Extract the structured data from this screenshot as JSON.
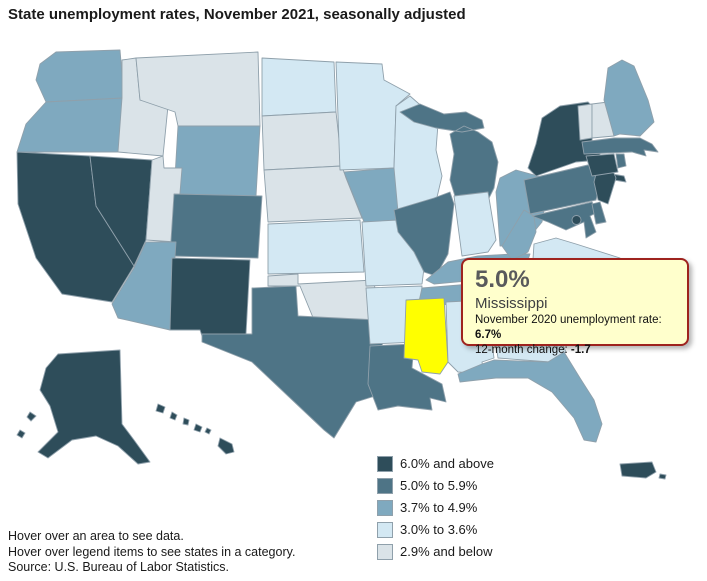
{
  "title": "State unemployment rates, November 2021, seasonally adjusted",
  "tooltip": {
    "rate": "5.0%",
    "state": "Mississippi",
    "prev_label": "November 2020 unemployment rate: ",
    "prev_value": "6.7%",
    "change_label": "12-month change: ",
    "change_value": "-1.7",
    "bg_color": "#FFFFCC",
    "border_color": "#9E231E"
  },
  "legend": {
    "items": [
      {
        "label": "6.0% and above",
        "color": "#2E4D5A"
      },
      {
        "label": "5.0% to 5.9%",
        "color": "#4E7486"
      },
      {
        "label": "3.7% to 4.9%",
        "color": "#7FA9BF"
      },
      {
        "label": "3.0% to 3.6%",
        "color": "#D3E8F3"
      },
      {
        "label": "2.9% and below",
        "color": "#DAE3E8"
      }
    ]
  },
  "map": {
    "border_color": "#8FA0AB",
    "highlighted_state": "MS",
    "highlight_color": "#FFFF00",
    "states": [
      {
        "id": "WA",
        "name": "Washington",
        "cat": 2
      },
      {
        "id": "OR",
        "name": "Oregon",
        "cat": 2
      },
      {
        "id": "CA",
        "name": "California",
        "cat": 0
      },
      {
        "id": "NV",
        "name": "Nevada",
        "cat": 0
      },
      {
        "id": "ID",
        "name": "Idaho",
        "cat": 4
      },
      {
        "id": "MT",
        "name": "Montana",
        "cat": 4
      },
      {
        "id": "WY",
        "name": "Wyoming",
        "cat": 2
      },
      {
        "id": "UT",
        "name": "Utah",
        "cat": 4
      },
      {
        "id": "CO",
        "name": "Colorado",
        "cat": 1
      },
      {
        "id": "AZ",
        "name": "Arizona",
        "cat": 2
      },
      {
        "id": "NM",
        "name": "New Mexico",
        "cat": 0
      },
      {
        "id": "ND",
        "name": "North Dakota",
        "cat": 3
      },
      {
        "id": "SD",
        "name": "South Dakota",
        "cat": 4
      },
      {
        "id": "NE",
        "name": "Nebraska",
        "cat": 4
      },
      {
        "id": "KS",
        "name": "Kansas",
        "cat": 3
      },
      {
        "id": "OK",
        "name": "Oklahoma",
        "cat": 4
      },
      {
        "id": "TX",
        "name": "Texas",
        "cat": 1
      },
      {
        "id": "MN",
        "name": "Minnesota",
        "cat": 3
      },
      {
        "id": "IA",
        "name": "Iowa",
        "cat": 2
      },
      {
        "id": "MO",
        "name": "Missouri",
        "cat": 3
      },
      {
        "id": "AR",
        "name": "Arkansas",
        "cat": 3
      },
      {
        "id": "LA",
        "name": "Louisiana",
        "cat": 1
      },
      {
        "id": "WI",
        "name": "Wisconsin",
        "cat": 3
      },
      {
        "id": "IL",
        "name": "Illinois",
        "cat": 1
      },
      {
        "id": "MI",
        "name": "Michigan",
        "cat": 1
      },
      {
        "id": "IN",
        "name": "Indiana",
        "cat": 3
      },
      {
        "id": "OH",
        "name": "Ohio",
        "cat": 2
      },
      {
        "id": "KY",
        "name": "Kentucky",
        "cat": 2
      },
      {
        "id": "TN",
        "name": "Tennessee",
        "cat": 2
      },
      {
        "id": "MS",
        "name": "Mississippi",
        "cat": 1
      },
      {
        "id": "AL",
        "name": "Alabama",
        "cat": 3
      },
      {
        "id": "GA",
        "name": "Georgia",
        "cat": 3
      },
      {
        "id": "FL",
        "name": "Florida",
        "cat": 2
      },
      {
        "id": "SC",
        "name": "South Carolina",
        "cat": 2
      },
      {
        "id": "NC",
        "name": "North Carolina",
        "cat": 2
      },
      {
        "id": "VA",
        "name": "Virginia",
        "cat": 3
      },
      {
        "id": "WV",
        "name": "West Virginia",
        "cat": 2
      },
      {
        "id": "PA",
        "name": "Pennsylvania",
        "cat": 1
      },
      {
        "id": "NY",
        "name": "New York",
        "cat": 0
      },
      {
        "id": "NJ",
        "name": "New Jersey",
        "cat": 0
      },
      {
        "id": "MD",
        "name": "Maryland",
        "cat": 1
      },
      {
        "id": "DE",
        "name": "Delaware",
        "cat": 1
      },
      {
        "id": "DC",
        "name": "District of Columbia",
        "cat": 0
      },
      {
        "id": "VT",
        "name": "Vermont",
        "cat": 4
      },
      {
        "id": "NH",
        "name": "New Hampshire",
        "cat": 4
      },
      {
        "id": "ME",
        "name": "Maine",
        "cat": 2
      },
      {
        "id": "MA",
        "name": "Massachusetts",
        "cat": 1
      },
      {
        "id": "CT",
        "name": "Connecticut",
        "cat": 0
      },
      {
        "id": "RI",
        "name": "Rhode Island",
        "cat": 1
      },
      {
        "id": "AK",
        "name": "Alaska",
        "cat": 0
      },
      {
        "id": "HI",
        "name": "Hawaii",
        "cat": 0
      },
      {
        "id": "PR",
        "name": "Puerto Rico",
        "cat": 0
      }
    ]
  },
  "footer": {
    "lines": [
      "Hover over an area to see data.",
      "Hover over legend items to see states in a category.",
      "Source: U.S. Bureau of Labor Statistics."
    ]
  }
}
